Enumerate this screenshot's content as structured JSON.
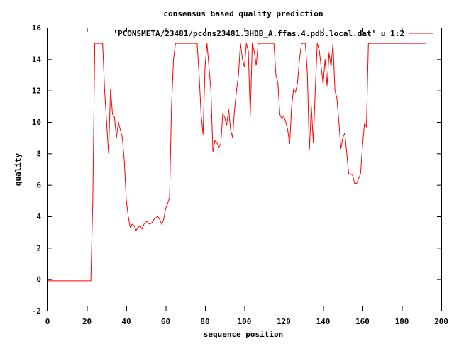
{
  "chart_data": {
    "type": "line",
    "title": "consensus based quality prediction",
    "xlabel": "sequence position",
    "ylabel": "quality",
    "xlim": [
      0,
      200
    ],
    "ylim": [
      -2,
      16
    ],
    "xticks": [
      0,
      20,
      40,
      60,
      80,
      100,
      120,
      140,
      160,
      180,
      200
    ],
    "yticks": [
      -2,
      0,
      2,
      4,
      6,
      8,
      10,
      12,
      14,
      16
    ],
    "legend_position": "top-right",
    "grid": false,
    "line_color": "#ff0000",
    "series": [
      {
        "name": "'PCONSMETA/23481/pcons23481.3HDB_A.ffas.4.pdb.local.dat' u 1:2",
        "x": [
          0,
          1,
          2,
          3,
          4,
          5,
          6,
          7,
          8,
          9,
          10,
          11,
          12,
          13,
          14,
          15,
          16,
          17,
          18,
          19,
          20,
          21,
          22,
          23,
          24,
          25,
          26,
          27,
          28,
          29,
          30,
          31,
          32,
          33,
          34,
          35,
          36,
          37,
          38,
          39,
          40,
          41,
          42,
          43,
          44,
          45,
          46,
          47,
          48,
          49,
          50,
          51,
          52,
          53,
          54,
          55,
          56,
          57,
          58,
          59,
          60,
          61,
          62,
          63,
          64,
          65,
          66,
          67,
          68,
          69,
          70,
          71,
          72,
          73,
          74,
          75,
          76,
          77,
          78,
          79,
          80,
          81,
          82,
          83,
          84,
          85,
          86,
          87,
          88,
          89,
          90,
          91,
          92,
          93,
          94,
          95,
          96,
          97,
          98,
          99,
          100,
          101,
          102,
          103,
          104,
          105,
          106,
          107,
          108,
          109,
          110,
          111,
          112,
          113,
          114,
          115,
          116,
          117,
          118,
          119,
          120,
          121,
          122,
          123,
          124,
          125,
          126,
          127,
          128,
          129,
          130,
          131,
          132,
          133,
          134,
          135,
          136,
          137,
          138,
          139,
          140,
          141,
          142,
          143,
          144,
          145,
          146,
          147,
          148,
          149,
          150,
          151,
          152,
          153,
          154,
          155,
          156,
          157,
          158,
          159,
          160,
          161,
          162,
          163,
          164,
          165,
          166,
          167,
          168,
          169,
          170,
          171,
          172,
          173,
          174,
          175,
          176,
          177,
          178,
          179,
          180,
          181,
          182,
          183,
          184,
          185,
          186,
          187,
          188,
          189,
          190,
          191,
          192
        ],
        "y": [
          -0.1,
          -0.1,
          -0.1,
          -0.1,
          -0.1,
          -0.1,
          -0.1,
          -0.1,
          -0.1,
          -0.1,
          -0.1,
          -0.1,
          -0.1,
          -0.1,
          -0.1,
          -0.1,
          -0.1,
          -0.1,
          -0.1,
          -0.1,
          -0.1,
          -0.1,
          -0.1,
          5.0,
          15.0,
          15.0,
          15.0,
          15.0,
          15.0,
          12.0,
          10.0,
          8.0,
          12.1,
          10.5,
          10.3,
          9.0,
          10.0,
          9.5,
          9.0,
          7.5,
          5.0,
          4.0,
          3.3,
          3.5,
          3.4,
          3.1,
          3.3,
          3.4,
          3.2,
          3.5,
          3.7,
          3.6,
          3.5,
          3.6,
          3.8,
          3.9,
          4.0,
          3.8,
          3.5,
          3.8,
          4.5,
          4.8,
          5.2,
          11.0,
          14.0,
          15.0,
          15.0,
          15.0,
          15.0,
          15.0,
          15.0,
          15.0,
          15.0,
          15.0,
          15.0,
          15.0,
          15.0,
          13.0,
          10.5,
          9.2,
          13.5,
          15.0,
          13.5,
          12.0,
          8.1,
          8.8,
          8.7,
          8.4,
          8.6,
          10.5,
          10.3,
          9.8,
          10.8,
          9.5,
          9.0,
          10.8,
          12.0,
          13.0,
          15.0,
          14.0,
          13.5,
          15.0,
          14.5,
          10.4,
          15.0,
          14.5,
          13.6,
          15.0,
          15.0,
          15.0,
          15.0,
          15.0,
          15.0,
          15.0,
          15.0,
          15.0,
          13.0,
          12.5,
          10.5,
          10.2,
          10.4,
          10.0,
          9.5,
          8.6,
          11.0,
          12.1,
          11.9,
          12.5,
          14.0,
          15.0,
          15.0,
          15.0,
          13.0,
          8.2,
          11.0,
          8.7,
          12.0,
          15.0,
          14.6,
          13.5,
          12.4,
          14.0,
          12.3,
          14.4,
          13.5,
          15.0,
          12.0,
          11.5,
          10.0,
          8.3,
          9.0,
          9.3,
          8.0,
          6.7,
          6.7,
          6.6,
          6.1,
          6.1,
          6.4,
          6.7,
          8.5,
          9.9,
          9.7,
          15.0,
          15.0,
          15.0,
          15.0,
          15.0,
          15.0,
          15.0,
          15.0,
          15.0,
          15.0,
          15.0,
          15.0,
          15.0,
          15.0,
          15.0,
          15.0,
          15.0,
          15.0,
          15.0,
          15.0,
          15.0,
          15.0,
          15.0,
          15.0,
          15.0,
          15.0,
          15.0,
          15.0,
          15.0,
          15.0
        ]
      }
    ]
  }
}
